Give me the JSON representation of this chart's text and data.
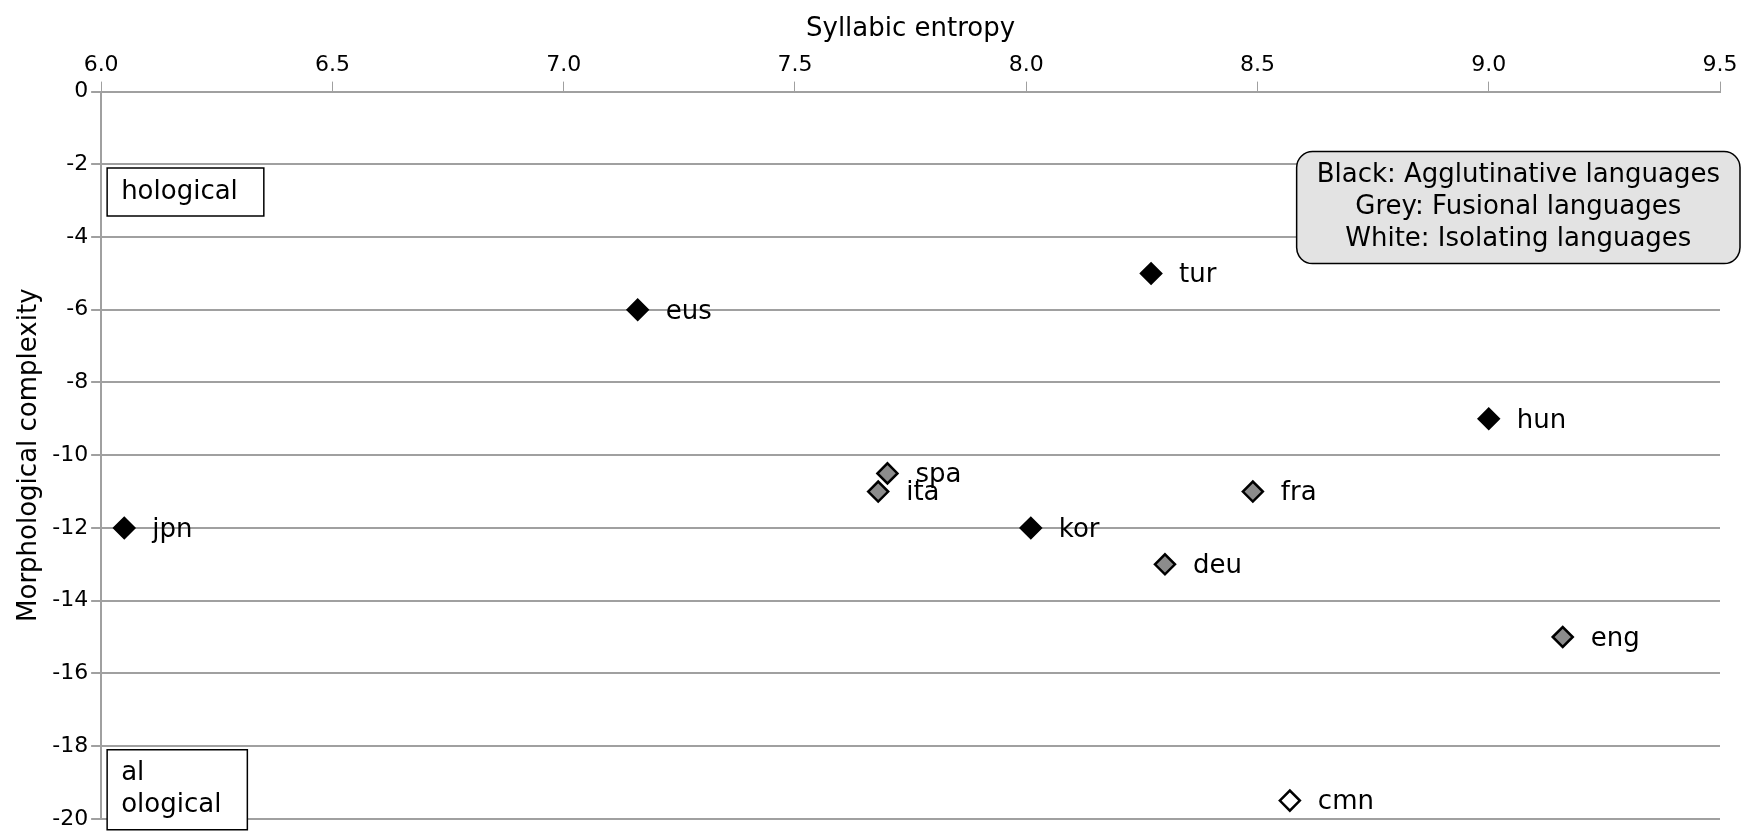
{
  "chart_data": {
    "type": "scatter",
    "xlabel": "Syllabic entropy",
    "ylabel": "Morphological complexity",
    "xlim": [
      6.0,
      9.5
    ],
    "xticks": [
      {
        "value": 6.0,
        "label": "6.0"
      },
      {
        "value": 6.5,
        "label": "6.5"
      },
      {
        "value": 7.0,
        "label": "7.0"
      },
      {
        "value": 7.5,
        "label": "7.5"
      },
      {
        "value": 8.0,
        "label": "8.0"
      },
      {
        "value": 8.5,
        "label": "8.5"
      },
      {
        "value": 9.0,
        "label": "9.0"
      },
      {
        "value": 9.5,
        "label": "9.5"
      }
    ],
    "ylim": [
      -20,
      0
    ],
    "yticks": [
      0,
      -2,
      -4,
      -6,
      -8,
      -10,
      -12,
      -14,
      -16,
      -18,
      -20
    ],
    "grid": "y",
    "marker": "diamond",
    "legend": false,
    "series": [
      {
        "color": "#000000",
        "x": [
          6.05,
          7.16,
          8.27,
          9.0,
          8.01
        ],
        "values": [
          -12,
          -6,
          -5,
          -9,
          -12
        ]
      },
      {
        "color": "#8c8c8c",
        "x": [
          7.7,
          7.68,
          8.49,
          8.3,
          9.16
        ],
        "values": [
          -10.5,
          -11,
          -11,
          -13,
          -15
        ]
      },
      {
        "color": "#ffffff",
        "x": [
          8.57
        ],
        "values": [
          -19.5
        ]
      }
    ],
    "annotations": [
      {
        "text": "jpn",
        "x": 6.05,
        "y": -12
      },
      {
        "text": "eus",
        "x": 7.16,
        "y": -6
      },
      {
        "text": "tur",
        "x": 8.27,
        "y": -5
      },
      {
        "text": "hun",
        "x": 9.0,
        "y": -9
      },
      {
        "text": "kor",
        "x": 8.01,
        "y": -12
      },
      {
        "text": "spa",
        "x": 7.7,
        "y": -10.5
      },
      {
        "text": "ita",
        "x": 7.68,
        "y": -11
      },
      {
        "text": "fra",
        "x": 8.49,
        "y": -11
      },
      {
        "text": "deu",
        "x": 8.3,
        "y": -13
      },
      {
        "text": "eng",
        "x": 9.16,
        "y": -15
      },
      {
        "text": "cmn",
        "x": 8.57,
        "y": -19.5
      },
      "Black: Agglutinative languages\nGrey: Fusional languages\nWhite: Isolating languages",
      "hological",
      "al\nological"
    ]
  }
}
